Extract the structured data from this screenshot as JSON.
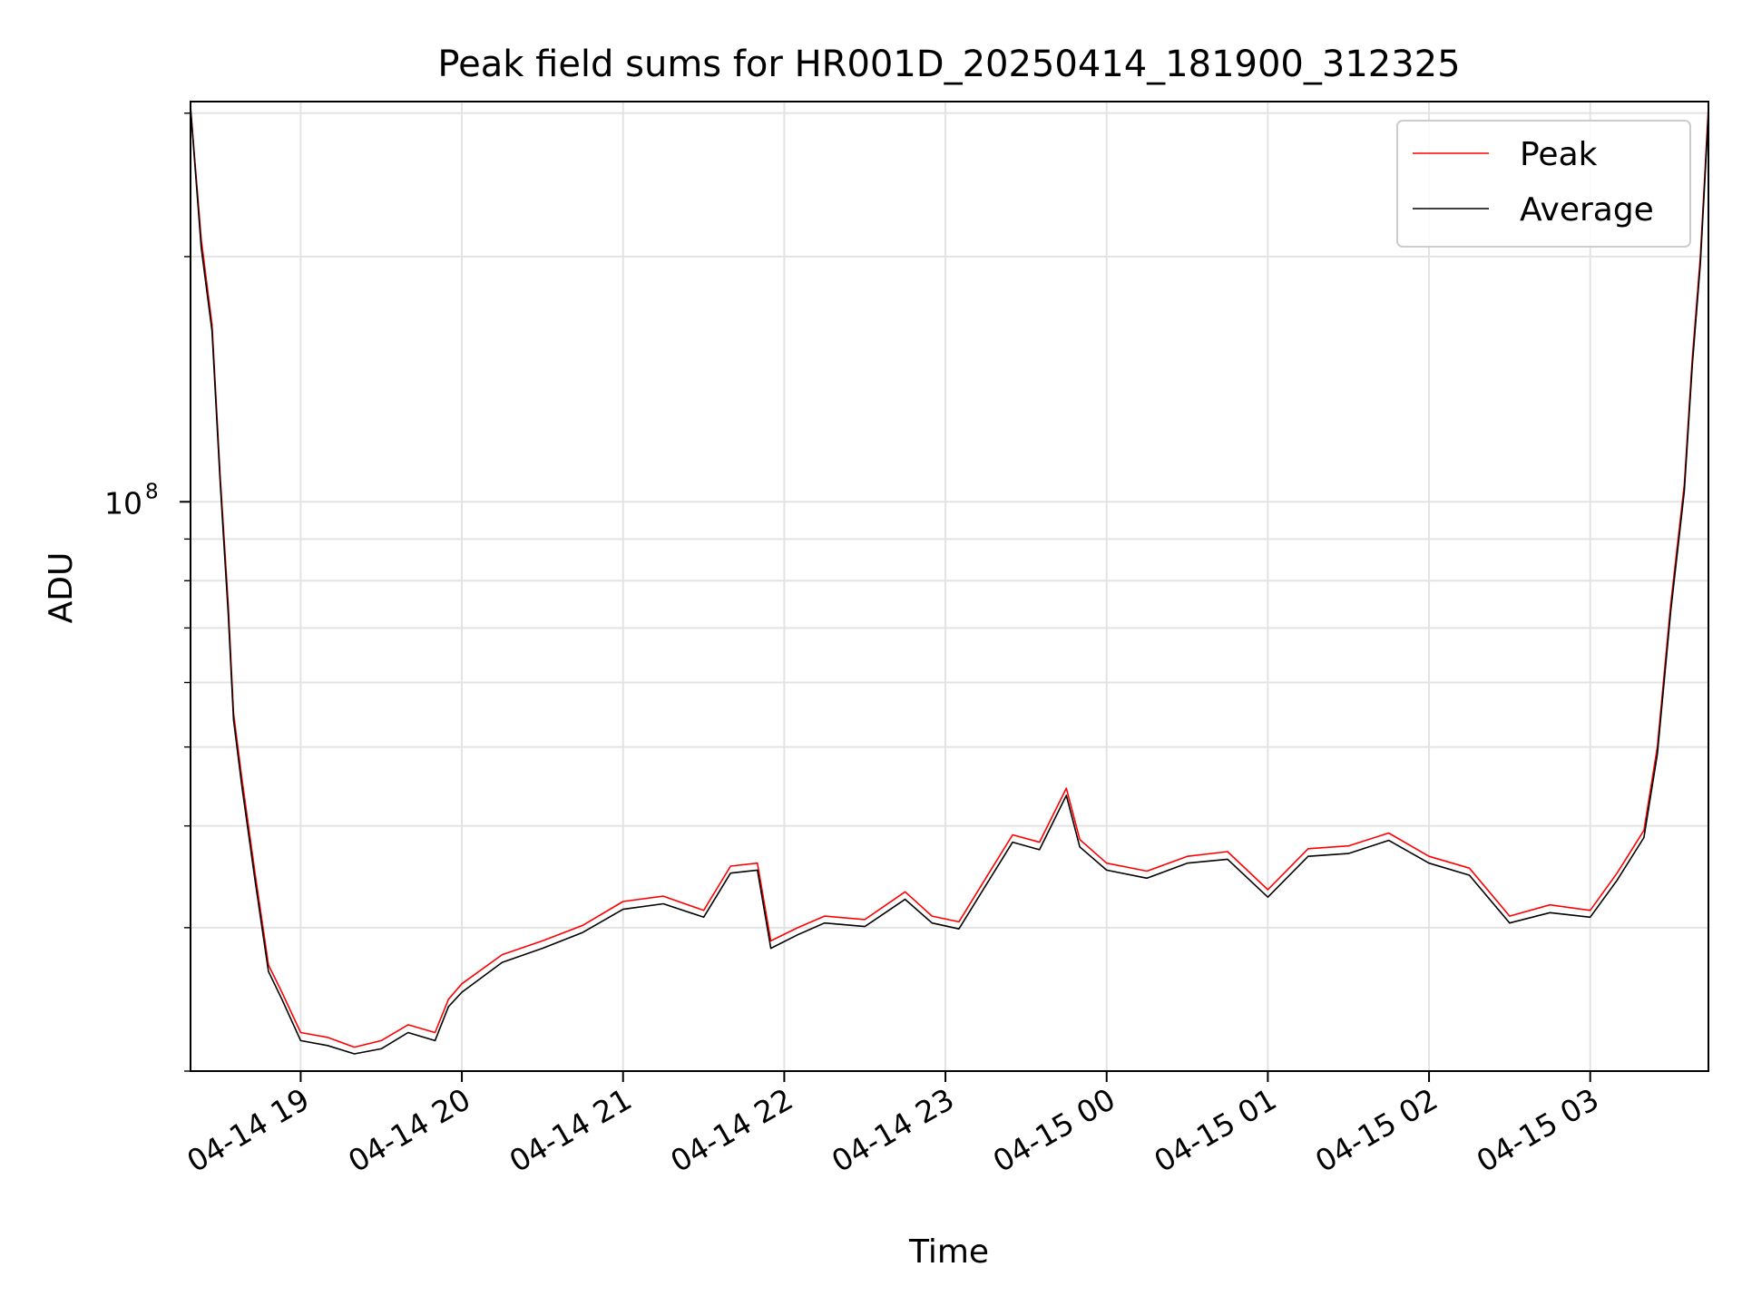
{
  "chart_data": {
    "type": "line",
    "title": "Peak field sums for HR001D_20250414_181900_312325",
    "xlabel": "Time",
    "ylabel": "ADU",
    "yscale": "log",
    "xlim": [
      "2025-04-14 18:19",
      "2025-04-15 03:44"
    ],
    "ylim": [
      20000000,
      310000000
    ],
    "x_ticks": [
      {
        "at": "2025-04-14 19:00",
        "label": "04-14 19"
      },
      {
        "at": "2025-04-14 20:00",
        "label": "04-14 20"
      },
      {
        "at": "2025-04-14 21:00",
        "label": "04-14 21"
      },
      {
        "at": "2025-04-14 22:00",
        "label": "04-14 22"
      },
      {
        "at": "2025-04-14 23:00",
        "label": "04-14 23"
      },
      {
        "at": "2025-04-15 00:00",
        "label": "04-15 00"
      },
      {
        "at": "2025-04-15 01:00",
        "label": "04-15 01"
      },
      {
        "at": "2025-04-15 02:00",
        "label": "04-15 02"
      },
      {
        "at": "2025-04-15 03:00",
        "label": "04-15 03"
      }
    ],
    "y_ticks": [
      {
        "at": 100000000,
        "base": "10",
        "exp": "8"
      }
    ],
    "grid": true,
    "legend_position": "top-right",
    "series": [
      {
        "name": "Peak",
        "color": "#ff0000",
        "points": [
          [
            "2025-04-14 18:19",
            305000000
          ],
          [
            "2025-04-14 18:23",
            210000000
          ],
          [
            "2025-04-14 18:27",
            165000000
          ],
          [
            "2025-04-14 18:30",
            108000000
          ],
          [
            "2025-04-14 18:33",
            75000000
          ],
          [
            "2025-04-14 18:35",
            55000000
          ],
          [
            "2025-04-14 18:38",
            46000000
          ],
          [
            "2025-04-14 18:43",
            35000000
          ],
          [
            "2025-04-14 18:48",
            27000000
          ],
          [
            "2025-04-14 18:53",
            25000000
          ],
          [
            "2025-04-14 19:00",
            22300000
          ],
          [
            "2025-04-14 19:10",
            22000000
          ],
          [
            "2025-04-14 19:20",
            21400000
          ],
          [
            "2025-04-14 19:30",
            21800000
          ],
          [
            "2025-04-14 19:40",
            22800000
          ],
          [
            "2025-04-14 19:50",
            22300000
          ],
          [
            "2025-04-14 19:55",
            24500000
          ],
          [
            "2025-04-14 20:00",
            25600000
          ],
          [
            "2025-04-14 20:15",
            27800000
          ],
          [
            "2025-04-14 20:30",
            28900000
          ],
          [
            "2025-04-14 20:45",
            30200000
          ],
          [
            "2025-04-14 21:00",
            32300000
          ],
          [
            "2025-04-14 21:15",
            32800000
          ],
          [
            "2025-04-14 21:30",
            31500000
          ],
          [
            "2025-04-14 21:40",
            35700000
          ],
          [
            "2025-04-14 21:50",
            36000000
          ],
          [
            "2025-04-14 21:55",
            28900000
          ],
          [
            "2025-04-14 22:05",
            30000000
          ],
          [
            "2025-04-14 22:15",
            31000000
          ],
          [
            "2025-04-14 22:30",
            30700000
          ],
          [
            "2025-04-14 22:45",
            33200000
          ],
          [
            "2025-04-14 22:55",
            31000000
          ],
          [
            "2025-04-14 23:05",
            30500000
          ],
          [
            "2025-04-14 23:15",
            34500000
          ],
          [
            "2025-04-14 23:25",
            39000000
          ],
          [
            "2025-04-14 23:35",
            38200000
          ],
          [
            "2025-04-14 23:45",
            44500000
          ],
          [
            "2025-04-14 23:50",
            38500000
          ],
          [
            "2025-04-15 00:00",
            36000000
          ],
          [
            "2025-04-15 00:15",
            35200000
          ],
          [
            "2025-04-15 00:30",
            36700000
          ],
          [
            "2025-04-15 00:45",
            37200000
          ],
          [
            "2025-04-15 01:00",
            33400000
          ],
          [
            "2025-04-15 01:15",
            37500000
          ],
          [
            "2025-04-15 01:30",
            37800000
          ],
          [
            "2025-04-15 01:45",
            39200000
          ],
          [
            "2025-04-15 02:00",
            36700000
          ],
          [
            "2025-04-15 02:15",
            35500000
          ],
          [
            "2025-04-15 02:30",
            31000000
          ],
          [
            "2025-04-15 02:45",
            32000000
          ],
          [
            "2025-04-15 03:00",
            31500000
          ],
          [
            "2025-04-15 03:10",
            35000000
          ],
          [
            "2025-04-15 03:20",
            39500000
          ],
          [
            "2025-04-15 03:25",
            50000000
          ],
          [
            "2025-04-15 03:30",
            75000000
          ],
          [
            "2025-04-15 03:35",
            105000000
          ],
          [
            "2025-04-15 03:38",
            150000000
          ],
          [
            "2025-04-15 03:41",
            200000000
          ],
          [
            "2025-04-15 03:44",
            305000000
          ]
        ]
      },
      {
        "name": "Average",
        "color": "#000000",
        "points": [
          [
            "2025-04-14 18:19",
            305000000
          ],
          [
            "2025-04-14 18:23",
            205000000
          ],
          [
            "2025-04-14 18:27",
            162000000
          ],
          [
            "2025-04-14 18:30",
            106000000
          ],
          [
            "2025-04-14 18:33",
            73000000
          ],
          [
            "2025-04-14 18:35",
            54000000
          ],
          [
            "2025-04-14 18:38",
            45000000
          ],
          [
            "2025-04-14 18:43",
            34300000
          ],
          [
            "2025-04-14 18:48",
            26500000
          ],
          [
            "2025-04-14 18:53",
            24500000
          ],
          [
            "2025-04-14 19:00",
            21800000
          ],
          [
            "2025-04-14 19:10",
            21500000
          ],
          [
            "2025-04-14 19:20",
            21000000
          ],
          [
            "2025-04-14 19:30",
            21300000
          ],
          [
            "2025-04-14 19:40",
            22300000
          ],
          [
            "2025-04-14 19:50",
            21800000
          ],
          [
            "2025-04-14 19:55",
            24000000
          ],
          [
            "2025-04-14 20:00",
            25000000
          ],
          [
            "2025-04-14 20:15",
            27200000
          ],
          [
            "2025-04-14 20:30",
            28300000
          ],
          [
            "2025-04-14 20:45",
            29600000
          ],
          [
            "2025-04-14 21:00",
            31600000
          ],
          [
            "2025-04-14 21:15",
            32100000
          ],
          [
            "2025-04-14 21:30",
            30900000
          ],
          [
            "2025-04-14 21:40",
            35000000
          ],
          [
            "2025-04-14 21:50",
            35300000
          ],
          [
            "2025-04-14 21:55",
            28300000
          ],
          [
            "2025-04-14 22:05",
            29400000
          ],
          [
            "2025-04-14 22:15",
            30400000
          ],
          [
            "2025-04-14 22:30",
            30100000
          ],
          [
            "2025-04-14 22:45",
            32500000
          ],
          [
            "2025-04-14 22:55",
            30400000
          ],
          [
            "2025-04-14 23:05",
            29900000
          ],
          [
            "2025-04-14 23:15",
            33800000
          ],
          [
            "2025-04-14 23:25",
            38200000
          ],
          [
            "2025-04-14 23:35",
            37400000
          ],
          [
            "2025-04-14 23:45",
            43600000
          ],
          [
            "2025-04-14 23:50",
            37700000
          ],
          [
            "2025-04-15 00:00",
            35300000
          ],
          [
            "2025-04-15 00:15",
            34500000
          ],
          [
            "2025-04-15 00:30",
            36000000
          ],
          [
            "2025-04-15 00:45",
            36400000
          ],
          [
            "2025-04-15 01:00",
            32700000
          ],
          [
            "2025-04-15 01:15",
            36700000
          ],
          [
            "2025-04-15 01:30",
            37000000
          ],
          [
            "2025-04-15 01:45",
            38400000
          ],
          [
            "2025-04-15 02:00",
            36000000
          ],
          [
            "2025-04-15 02:15",
            34800000
          ],
          [
            "2025-04-15 02:30",
            30400000
          ],
          [
            "2025-04-15 02:45",
            31300000
          ],
          [
            "2025-04-15 03:00",
            30900000
          ],
          [
            "2025-04-15 03:10",
            34300000
          ],
          [
            "2025-04-15 03:20",
            38700000
          ],
          [
            "2025-04-15 03:25",
            49000000
          ],
          [
            "2025-04-15 03:30",
            73500000
          ],
          [
            "2025-04-15 03:35",
            103000000
          ],
          [
            "2025-04-15 03:38",
            147000000
          ],
          [
            "2025-04-15 03:41",
            196000000
          ],
          [
            "2025-04-15 03:44",
            300000000
          ]
        ]
      }
    ]
  }
}
